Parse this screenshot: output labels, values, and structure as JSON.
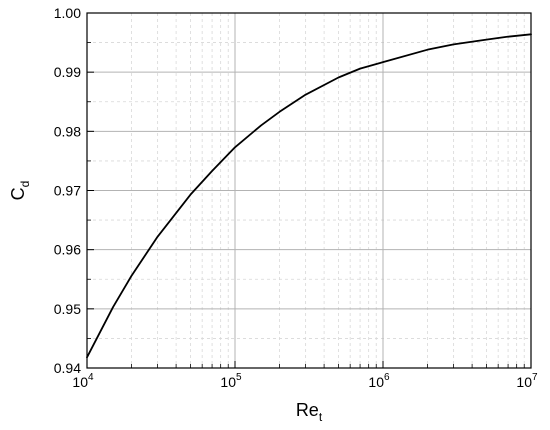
{
  "chart_data": {
    "type": "line",
    "xscale": "log",
    "xlim": [
      10000,
      10000000
    ],
    "ylim": [
      0.94,
      1.0
    ],
    "grid": true,
    "x_tick_labels": [
      {
        "base": "10",
        "exp": "4",
        "value": 10000
      },
      {
        "base": "10",
        "exp": "5",
        "value": 100000
      },
      {
        "base": "10",
        "exp": "6",
        "value": 1000000
      },
      {
        "base": "10",
        "exp": "7",
        "value": 10000000
      }
    ],
    "y_tick_labels": [
      "0.94",
      "0.95",
      "0.96",
      "0.97",
      "0.98",
      "0.99",
      "1.00"
    ],
    "y_tick_values": [
      0.94,
      0.95,
      0.96,
      0.97,
      0.98,
      0.99,
      1.0
    ],
    "xlabel": {
      "main": "Re",
      "sub": "t"
    },
    "ylabel": {
      "main": "C",
      "sub": "d"
    },
    "series": [
      {
        "color": "#000000",
        "x": [
          10000,
          15000,
          20000,
          30000,
          50000,
          70000,
          100000,
          150000,
          200000,
          300000,
          500000,
          700000,
          1000000,
          2000000,
          3000000,
          5000000,
          7000000,
          10000000
        ],
        "y": [
          0.9418,
          0.9503,
          0.9556,
          0.9622,
          0.9693,
          0.9733,
          0.9773,
          0.981,
          0.9833,
          0.9862,
          0.9891,
          0.9906,
          0.9917,
          0.9938,
          0.9947,
          0.9955,
          0.996,
          0.9964
        ]
      }
    ]
  }
}
